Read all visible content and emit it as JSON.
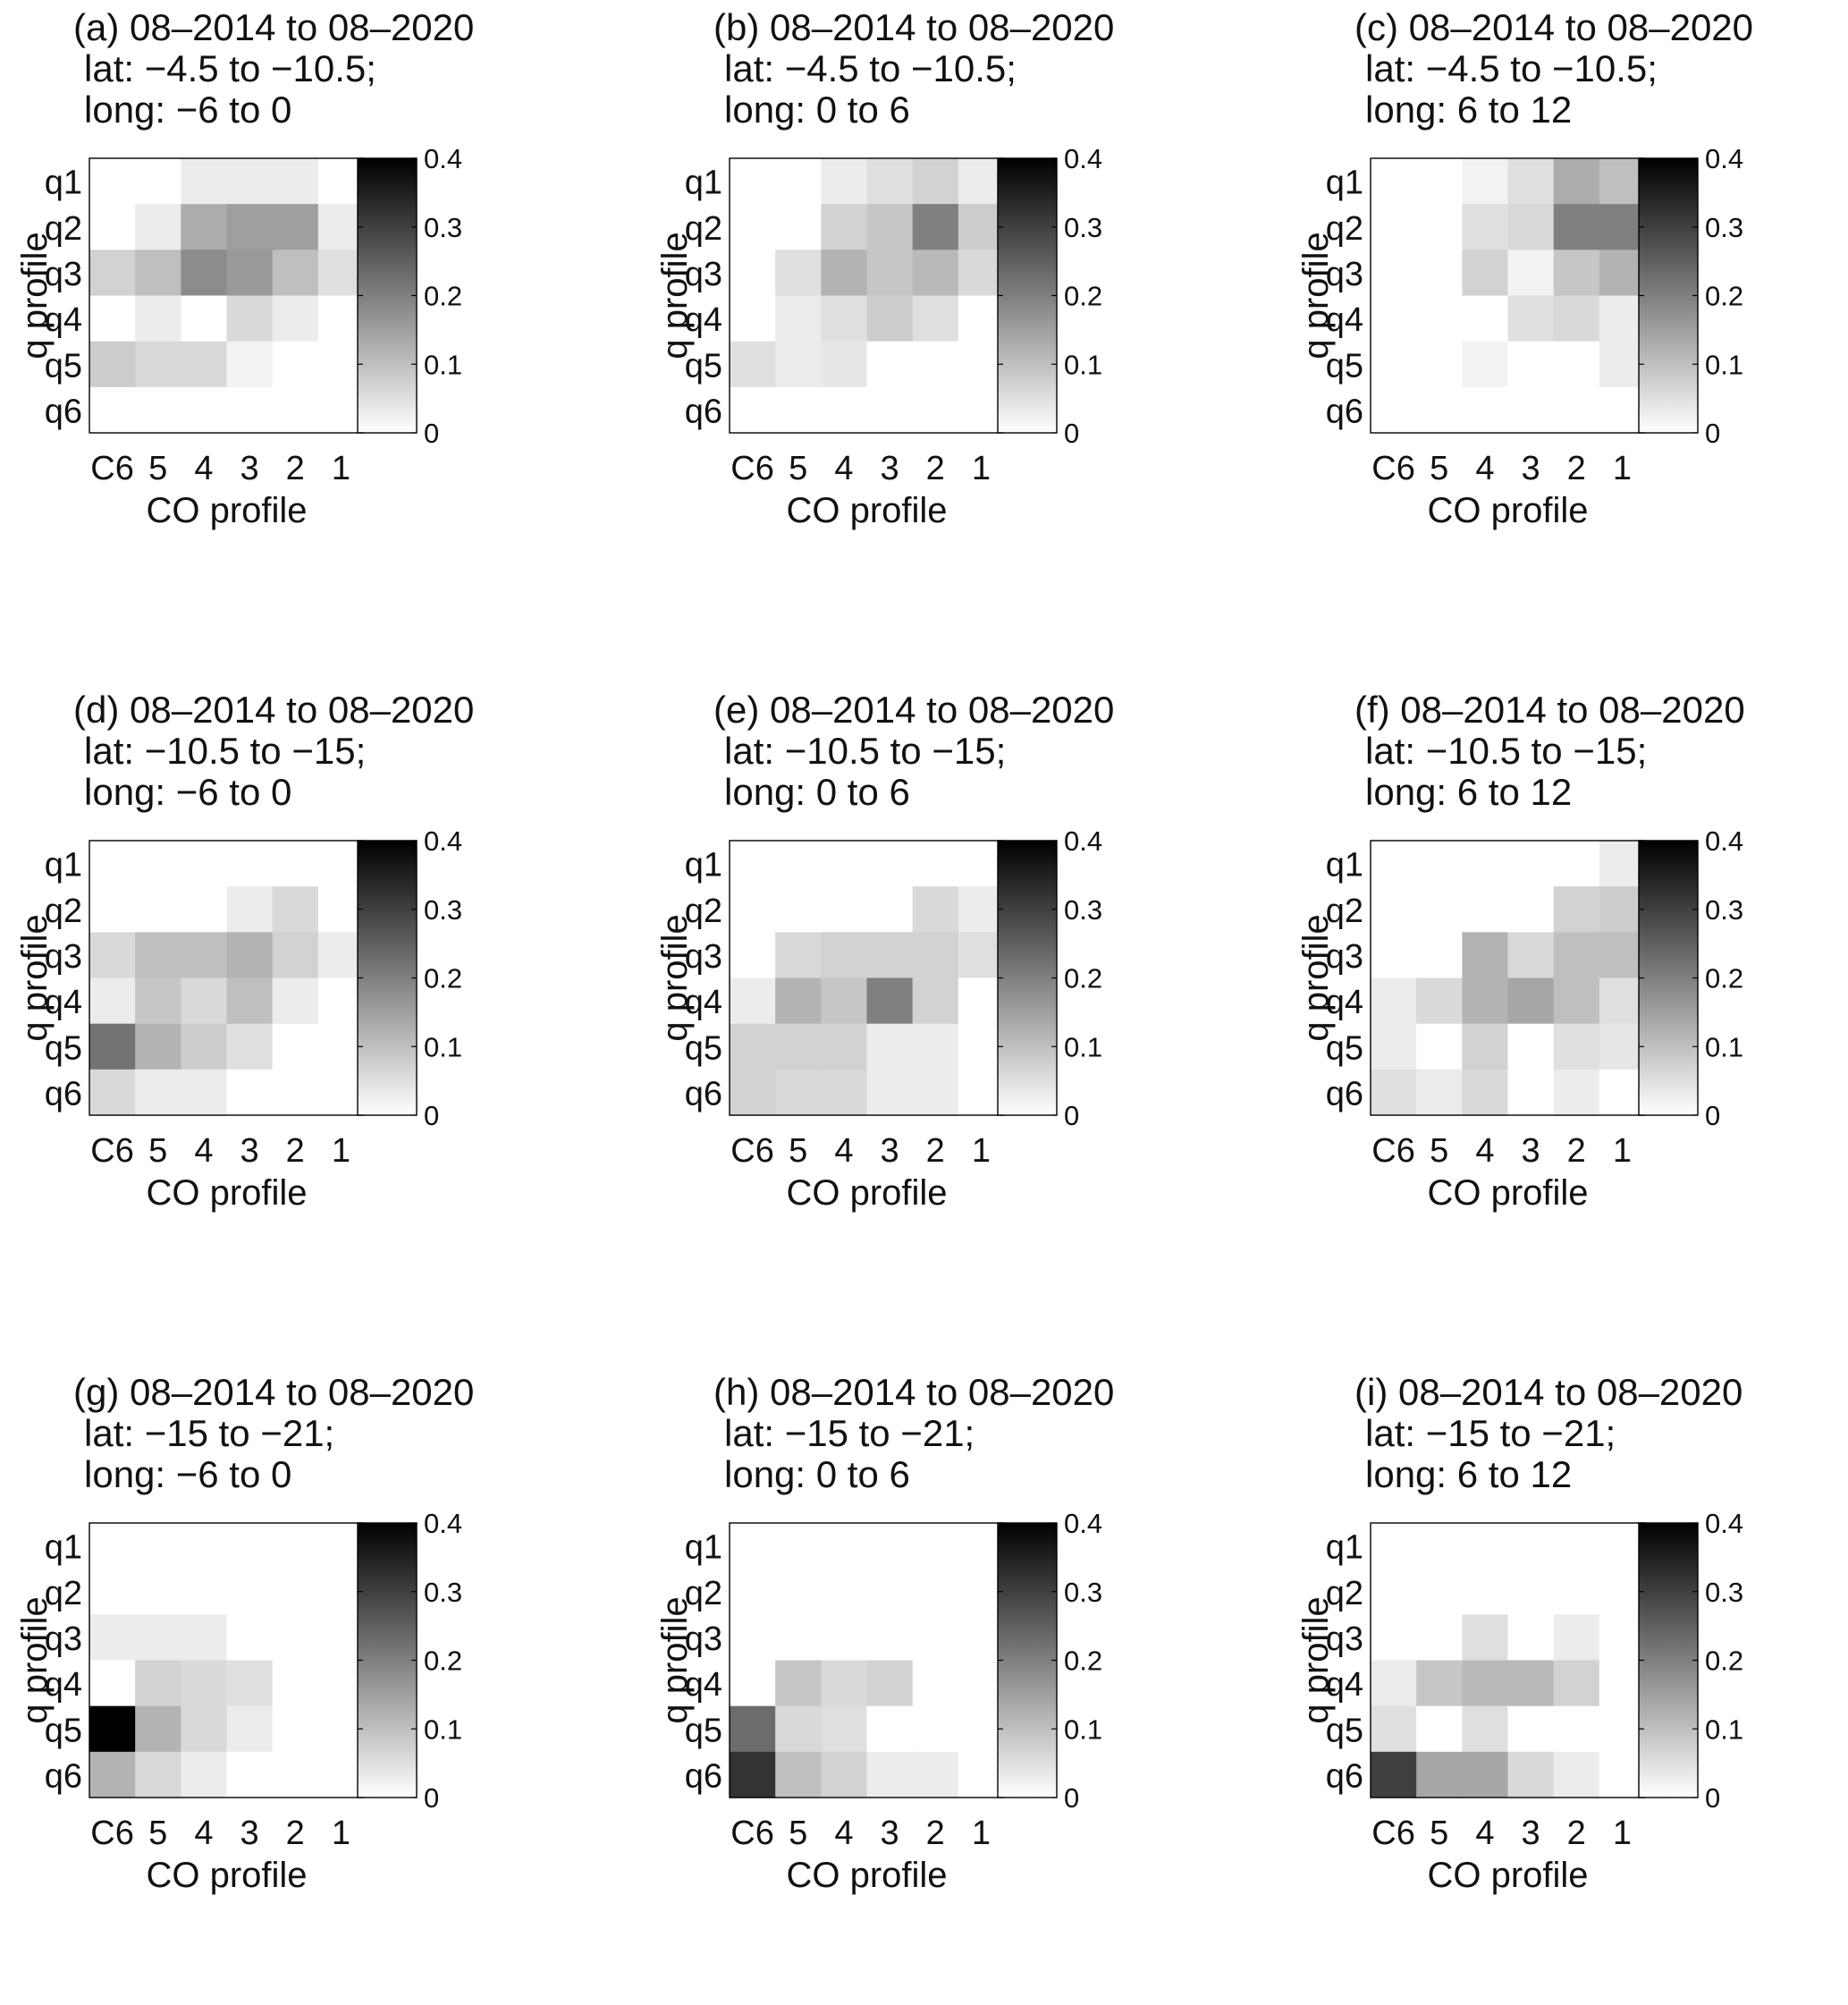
{
  "figure": {
    "x_label": "CO profile",
    "y_label": "q profile",
    "x_ticks": [
      "C6",
      "5",
      "4",
      "3",
      "2",
      "1"
    ],
    "y_ticks": [
      "q1",
      "q2",
      "q3",
      "q4",
      "q5",
      "q6"
    ],
    "colorbar_ticks": [
      "0.4",
      "0.3",
      "0.2",
      "0.1",
      "0"
    ]
  },
  "chart_data": [
    {
      "type": "heatmap",
      "title_lines": [
        "(a) 08–2014 to 08–2020",
        "lat: −4.5 to −10.5;",
        "long: −6 to 0"
      ],
      "xlabel": "CO profile",
      "ylabel": "q profile",
      "x": [
        "C6",
        "5",
        "4",
        "3",
        "2",
        "1"
      ],
      "y": [
        "q1",
        "q2",
        "q3",
        "q4",
        "q5",
        "q6"
      ],
      "zlim": [
        0,
        0.4
      ],
      "colormap": "gray-reversed",
      "values": [
        [
          0,
          0,
          0.03,
          0.03,
          0.03,
          0
        ],
        [
          0,
          0.03,
          0.13,
          0.15,
          0.15,
          0.03
        ],
        [
          0.07,
          0.1,
          0.18,
          0.16,
          0.1,
          0.05
        ],
        [
          0,
          0.03,
          0,
          0.06,
          0.03,
          0
        ],
        [
          0.08,
          0.06,
          0.06,
          0.02,
          0,
          0
        ],
        [
          0,
          0,
          0,
          0,
          0,
          0
        ]
      ]
    },
    {
      "type": "heatmap",
      "title_lines": [
        "(b) 08–2014 to 08–2020",
        "lat: −4.5 to −10.5;",
        "long: 0 to 6"
      ],
      "xlabel": "CO profile",
      "ylabel": "q profile",
      "x": [
        "C6",
        "5",
        "4",
        "3",
        "2",
        "1"
      ],
      "y": [
        "q1",
        "q2",
        "q3",
        "q4",
        "q5",
        "q6"
      ],
      "zlim": [
        0,
        0.4
      ],
      "colormap": "gray-reversed",
      "values": [
        [
          0,
          0,
          0.03,
          0.05,
          0.07,
          0.03
        ],
        [
          0,
          0,
          0.07,
          0.09,
          0.2,
          0.08
        ],
        [
          0,
          0.05,
          0.12,
          0.09,
          0.11,
          0.06
        ],
        [
          0,
          0.03,
          0.05,
          0.08,
          0.05,
          0
        ],
        [
          0.05,
          0.03,
          0.04,
          0,
          0,
          0
        ],
        [
          0,
          0,
          0,
          0,
          0,
          0
        ]
      ]
    },
    {
      "type": "heatmap",
      "title_lines": [
        "(c) 08–2014 to 08–2020",
        "lat: −4.5 to −10.5;",
        "long: 6 to 12"
      ],
      "xlabel": "CO profile",
      "ylabel": "q profile",
      "x": [
        "C6",
        "5",
        "4",
        "3",
        "2",
        "1"
      ],
      "y": [
        "q1",
        "q2",
        "q3",
        "q4",
        "q5",
        "q6"
      ],
      "zlim": [
        0,
        0.4
      ],
      "colormap": "gray-reversed",
      "values": [
        [
          0,
          0,
          0.02,
          0.05,
          0.13,
          0.1
        ],
        [
          0,
          0,
          0.05,
          0.06,
          0.2,
          0.2
        ],
        [
          0,
          0,
          0.07,
          0.02,
          0.09,
          0.12
        ],
        [
          0,
          0,
          0,
          0.05,
          0.06,
          0.03
        ],
        [
          0,
          0,
          0.02,
          0,
          0,
          0.03
        ],
        [
          0,
          0,
          0,
          0,
          0,
          0
        ]
      ]
    },
    {
      "type": "heatmap",
      "title_lines": [
        "(d) 08–2014 to 08–2020",
        "lat: −10.5 to −15;",
        "long: −6 to 0"
      ],
      "xlabel": "CO profile",
      "ylabel": "q profile",
      "x": [
        "C6",
        "5",
        "4",
        "3",
        "2",
        "1"
      ],
      "y": [
        "q1",
        "q2",
        "q3",
        "q4",
        "q5",
        "q6"
      ],
      "zlim": [
        0,
        0.4
      ],
      "colormap": "gray-reversed",
      "values": [
        [
          0,
          0,
          0,
          0,
          0,
          0
        ],
        [
          0,
          0,
          0,
          0.03,
          0.06,
          0
        ],
        [
          0.06,
          0.1,
          0.1,
          0.12,
          0.07,
          0.03
        ],
        [
          0.03,
          0.09,
          0.06,
          0.1,
          0.03,
          0
        ],
        [
          0.22,
          0.12,
          0.08,
          0.05,
          0,
          0
        ],
        [
          0.06,
          0.03,
          0.03,
          0,
          0,
          0
        ]
      ]
    },
    {
      "type": "heatmap",
      "title_lines": [
        "(e) 08–2014 to 08–2020",
        "lat: −10.5 to −15;",
        "long: 0 to 6"
      ],
      "xlabel": "CO profile",
      "ylabel": "q profile",
      "x": [
        "C6",
        "5",
        "4",
        "3",
        "2",
        "1"
      ],
      "y": [
        "q1",
        "q2",
        "q3",
        "q4",
        "q5",
        "q6"
      ],
      "zlim": [
        0,
        0.4
      ],
      "colormap": "gray-reversed",
      "values": [
        [
          0,
          0,
          0,
          0,
          0,
          0
        ],
        [
          0,
          0,
          0,
          0,
          0.06,
          0.03
        ],
        [
          0,
          0.06,
          0.07,
          0.07,
          0.07,
          0.05
        ],
        [
          0.03,
          0.12,
          0.09,
          0.2,
          0.07,
          0
        ],
        [
          0.07,
          0.07,
          0.07,
          0.03,
          0.03,
          0
        ],
        [
          0.07,
          0.06,
          0.06,
          0.03,
          0.03,
          0
        ]
      ]
    },
    {
      "type": "heatmap",
      "title_lines": [
        "(f) 08–2014 to 08–2020",
        "lat: −10.5 to −15;",
        "long: 6 to 12"
      ],
      "xlabel": "CO profile",
      "ylabel": "q profile",
      "x": [
        "C6",
        "5",
        "4",
        "3",
        "2",
        "1"
      ],
      "y": [
        "q1",
        "q2",
        "q3",
        "q4",
        "q5",
        "q6"
      ],
      "zlim": [
        0,
        0.4
      ],
      "colormap": "gray-reversed",
      "values": [
        [
          0,
          0,
          0,
          0,
          0,
          0.03
        ],
        [
          0,
          0,
          0,
          0,
          0.07,
          0.08
        ],
        [
          0,
          0,
          0.12,
          0.06,
          0.1,
          0.1
        ],
        [
          0.03,
          0.06,
          0.12,
          0.14,
          0.1,
          0.05
        ],
        [
          0.03,
          0,
          0.07,
          0,
          0.05,
          0.04
        ],
        [
          0.05,
          0.03,
          0.06,
          0,
          0.03,
          0
        ]
      ]
    },
    {
      "type": "heatmap",
      "title_lines": [
        "(g) 08–2014 to 08–2020",
        "lat: −15 to −21;",
        "long: −6 to 0"
      ],
      "xlabel": "CO profile",
      "ylabel": "q profile",
      "x": [
        "C6",
        "5",
        "4",
        "3",
        "2",
        "1"
      ],
      "y": [
        "q1",
        "q2",
        "q3",
        "q4",
        "q5",
        "q6"
      ],
      "zlim": [
        0,
        0.4
      ],
      "colormap": "gray-reversed",
      "values": [
        [
          0,
          0,
          0,
          0,
          0,
          0
        ],
        [
          0,
          0,
          0,
          0,
          0,
          0
        ],
        [
          0.03,
          0.03,
          0.03,
          0,
          0,
          0
        ],
        [
          0,
          0.07,
          0.06,
          0.05,
          0,
          0
        ],
        [
          0.4,
          0.12,
          0.06,
          0.03,
          0,
          0
        ],
        [
          0.12,
          0.06,
          0.03,
          0,
          0,
          0
        ]
      ]
    },
    {
      "type": "heatmap",
      "title_lines": [
        "(h) 08–2014 to 08–2020",
        "lat: −15 to −21;",
        "long: 0 to 6"
      ],
      "xlabel": "CO profile",
      "ylabel": "q profile",
      "x": [
        "C6",
        "5",
        "4",
        "3",
        "2",
        "1"
      ],
      "y": [
        "q1",
        "q2",
        "q3",
        "q4",
        "q5",
        "q6"
      ],
      "zlim": [
        0,
        0.4
      ],
      "colormap": "gray-reversed",
      "values": [
        [
          0,
          0,
          0,
          0,
          0,
          0
        ],
        [
          0,
          0,
          0,
          0,
          0,
          0
        ],
        [
          0,
          0,
          0,
          0,
          0,
          0
        ],
        [
          0,
          0.09,
          0.06,
          0.07,
          0,
          0
        ],
        [
          0.23,
          0.06,
          0.05,
          0,
          0,
          0
        ],
        [
          0.32,
          0.1,
          0.07,
          0.03,
          0.03,
          0
        ]
      ]
    },
    {
      "type": "heatmap",
      "title_lines": [
        "(i) 08–2014 to 08–2020",
        "lat: −15 to −21;",
        "long: 6 to 12"
      ],
      "xlabel": "CO profile",
      "ylabel": "q profile",
      "x": [
        "C6",
        "5",
        "4",
        "3",
        "2",
        "1"
      ],
      "y": [
        "q1",
        "q2",
        "q3",
        "q4",
        "q5",
        "q6"
      ],
      "zlim": [
        0,
        0.4
      ],
      "colormap": "gray-reversed",
      "values": [
        [
          0,
          0,
          0,
          0,
          0,
          0
        ],
        [
          0,
          0,
          0,
          0,
          0,
          0
        ],
        [
          0,
          0,
          0.05,
          0,
          0.03,
          0
        ],
        [
          0.03,
          0.09,
          0.11,
          0.11,
          0.07,
          0
        ],
        [
          0.05,
          0,
          0.05,
          0,
          0,
          0
        ],
        [
          0.3,
          0.14,
          0.14,
          0.06,
          0.03,
          0
        ]
      ]
    }
  ]
}
